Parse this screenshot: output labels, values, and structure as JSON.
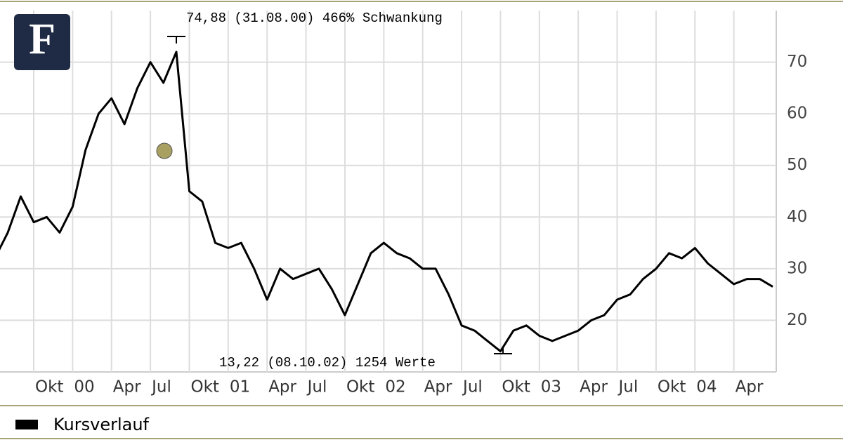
{
  "logo": "F",
  "chart_data": {
    "type": "line",
    "annotations": [
      "74,88 (31.08.00) 466% Schwankung",
      "13,22 (08.10.02) 1254 Werte"
    ],
    "categories": [
      null,
      null,
      null,
      "Okt",
      null,
      null,
      "00",
      null,
      null,
      "Apr",
      null,
      null,
      "Jul",
      null,
      null,
      "Okt",
      null,
      null,
      "01",
      null,
      null,
      "Apr",
      null,
      null,
      "Jul",
      null,
      null,
      "Okt",
      null,
      null,
      "02",
      null,
      null,
      "Apr",
      null,
      null,
      "Jul",
      null,
      null,
      "Okt",
      null,
      null,
      "03",
      null,
      null,
      "Apr",
      null,
      null,
      "Jul",
      null,
      null,
      "Okt",
      null,
      null,
      "04",
      null,
      null,
      "Apr",
      null,
      null,
      null
    ],
    "series": [
      {
        "name": "Kursverlauf",
        "color": "#000000",
        "values": [
          32,
          37,
          44,
          39,
          40,
          37,
          42,
          53,
          60,
          63,
          58,
          65,
          70,
          66,
          72,
          45,
          43,
          35,
          34,
          35,
          30,
          24,
          30,
          28,
          29,
          30,
          26,
          21,
          27,
          33,
          35,
          33,
          32,
          30,
          30,
          25,
          19,
          18,
          16,
          14,
          18,
          19,
          17,
          16,
          17,
          18,
          20,
          21,
          24,
          25,
          28,
          30,
          33,
          32,
          34,
          31,
          29,
          27,
          28,
          28,
          26.5
        ]
      }
    ],
    "ylim": [
      10,
      80
    ],
    "yticks": [
      20,
      30,
      40,
      50,
      60,
      70
    ],
    "grid": true
  }
}
